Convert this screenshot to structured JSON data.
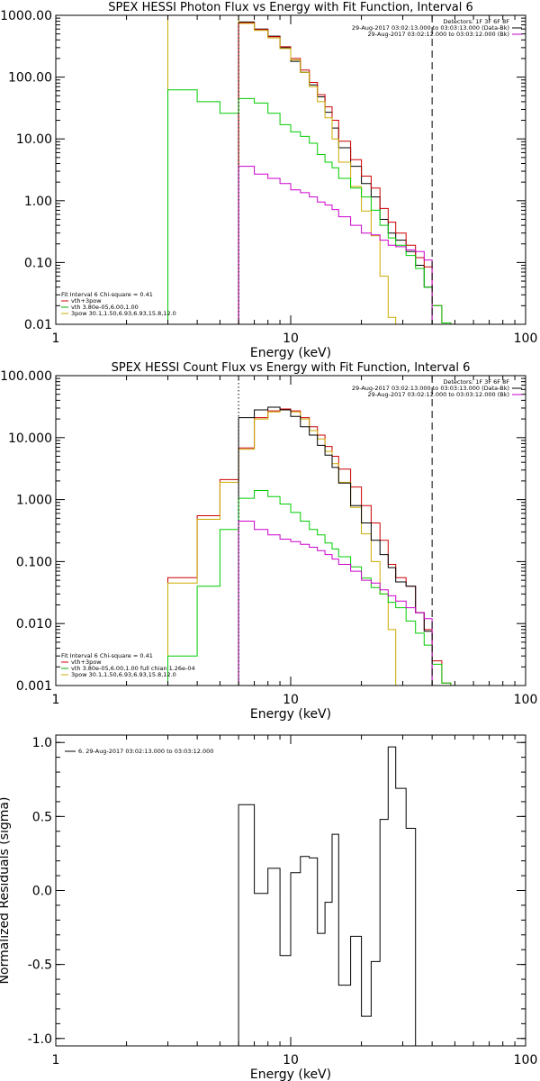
{
  "chart_data": [
    {
      "type": "line",
      "title": "SPEX HESSI Photon Flux vs Energy with Fit Function, Interval 6",
      "xlabel": "Energy (keV)",
      "ylabel": "",
      "xscale": "log",
      "yscale": "log",
      "xlim": [
        1,
        100
      ],
      "ylim": [
        0.01,
        1000
      ],
      "xticks": [
        {
          "v": 1,
          "label": "1"
        },
        {
          "v": 10,
          "label": "10"
        },
        {
          "v": 100,
          "label": "100"
        }
      ],
      "yticks": [
        {
          "v": 1000,
          "label": "1000.00"
        },
        {
          "v": 100,
          "label": "100.00"
        },
        {
          "v": 10,
          "label": "10.00"
        },
        {
          "v": 1,
          "label": "1.00"
        },
        {
          "v": 0.1,
          "label": "0.10"
        },
        {
          "v": 0.01,
          "label": "0.01"
        }
      ],
      "header_lines": [
        {
          "text": "Detectors: 1F 3F 6F 8F",
          "color": "#000000"
        },
        {
          "text": "29-Aug-2017 03:02:13.000 to 03:03:13.000 (Data-Bk)",
          "color": "#000000"
        },
        {
          "text": "29-Aug-2017 03:02:12.000 to 03:03:12.000 (Bk)",
          "color": "#cc00cc"
        }
      ],
      "legend_lines": [
        {
          "text": "Fit Interval 6   Chi-square = 0.41",
          "color": "#000000"
        },
        {
          "text": "vth+3pow",
          "color": "#cc0000"
        },
        {
          "text": "vth 3.80e-05,6.00,1.00",
          "color": "#00aa00"
        },
        {
          "text": "3pow 30.1,1.50,6.93,6.93,15.8,12.0",
          "color": "#ccaa00"
        }
      ],
      "vlines": [
        {
          "x": 6.0,
          "style": "dotted",
          "color": "#000000"
        },
        {
          "x": 40.0,
          "style": "dashed",
          "color": "#000000"
        }
      ],
      "series": [
        {
          "name": "Data-Bk",
          "color": "#000000",
          "x0": 6.0,
          "edges": [
            7,
            8,
            9,
            10,
            11,
            12,
            13,
            14,
            15,
            16,
            18,
            20,
            22,
            24,
            26,
            28,
            31,
            34,
            37,
            40
          ],
          "values": [
            780,
            600,
            460,
            300,
            180,
            120,
            75,
            48,
            27,
            15,
            7.2,
            3.6,
            1.9,
            1.15,
            0.5,
            0.3,
            0.23,
            0.15,
            0.09,
            0.04
          ]
        },
        {
          "name": "vth+3pow",
          "color": "#cc0000",
          "x0": 6.0,
          "edges": [
            7,
            8,
            9,
            10,
            11,
            12,
            13,
            14,
            15,
            16,
            18,
            20,
            22,
            24,
            26,
            28,
            31,
            34,
            37,
            40,
            44,
            48
          ],
          "values": [
            760,
            590,
            450,
            310,
            200,
            130,
            82,
            52,
            33,
            20,
            9.2,
            4.6,
            2.5,
            1.6,
            0.75,
            0.45,
            0.3,
            0.19,
            0.12,
            0.085,
            0.02,
            0.0105
          ]
        },
        {
          "name": "3pow",
          "color": "#ccaa00",
          "x0": 3.0,
          "edges": [
            6,
            7,
            8,
            9,
            10,
            11,
            12,
            13,
            14,
            15,
            16,
            18,
            20,
            22,
            24,
            26,
            28
          ],
          "values": [
            1000,
            740,
            570,
            430,
            290,
            190,
            120,
            70,
            40,
            22,
            10,
            4.2,
            1.7,
            0.68,
            0.27,
            0.06,
            0.013
          ]
        },
        {
          "name": "vth",
          "color": "#00cc00",
          "x0": 3.0,
          "edges": [
            4,
            5,
            6,
            7,
            8,
            9,
            10,
            11,
            12,
            13,
            14,
            15,
            16,
            18,
            20,
            22,
            24,
            26,
            28,
            31,
            34,
            37,
            40,
            44,
            48
          ],
          "values": [
            62,
            40,
            26,
            45,
            38,
            26,
            17,
            13,
            11,
            8.5,
            5.6,
            4.2,
            3.4,
            2.3,
            1.6,
            1.15,
            0.7,
            0.4,
            0.25,
            0.19,
            0.13,
            0.08,
            0.04,
            0.02,
            0.0105
          ]
        },
        {
          "name": "Bk",
          "color": "#cc00cc",
          "x0": 6.0,
          "edges": [
            7,
            8,
            9,
            10,
            11,
            12,
            13,
            14,
            15,
            16,
            18,
            20,
            22,
            24,
            26,
            28,
            31,
            34,
            37,
            40
          ],
          "values": [
            3.6,
            2.7,
            2.3,
            1.9,
            1.5,
            1.35,
            1.15,
            0.95,
            0.85,
            0.72,
            0.55,
            0.4,
            0.3,
            0.28,
            0.23,
            0.19,
            0.18,
            0.16,
            0.15,
            0.11
          ]
        }
      ]
    },
    {
      "type": "line",
      "title": "SPEX HESSI Count Flux vs Energy with Fit Function, Interval 6",
      "xlabel": "Energy (keV)",
      "ylabel": "",
      "xscale": "log",
      "yscale": "log",
      "xlim": [
        1,
        100
      ],
      "ylim": [
        0.001,
        100
      ],
      "xticks": [
        {
          "v": 1,
          "label": "1"
        },
        {
          "v": 10,
          "label": "10"
        },
        {
          "v": 100,
          "label": "100"
        }
      ],
      "yticks": [
        {
          "v": 100,
          "label": "100.000"
        },
        {
          "v": 10,
          "label": "10.000"
        },
        {
          "v": 1,
          "label": "1.000"
        },
        {
          "v": 0.1,
          "label": "0.100"
        },
        {
          "v": 0.01,
          "label": "0.010"
        },
        {
          "v": 0.001,
          "label": "0.001"
        }
      ],
      "header_lines": [
        {
          "text": "Detectors: 1F 3F 6F 8F",
          "color": "#000000"
        },
        {
          "text": "29-Aug-2017 03:02:13.000 to 03:03:13.000 (Data-Bk)",
          "color": "#000000"
        },
        {
          "text": "29-Aug-2017 03:02:12.000 to 03:03:12.000 (Bk)",
          "color": "#cc00cc"
        }
      ],
      "legend_lines": [
        {
          "text": "Fit Interval 6   Chi-square = 0.41",
          "color": "#000000"
        },
        {
          "text": "vth+3pow",
          "color": "#cc0000"
        },
        {
          "text": "vth 3.80e-05,6.00,1.00   full chian 1.26e-04",
          "color": "#00aa00"
        },
        {
          "text": "3pow 30.1,1.50,6.93,6.93,15.8,12.0",
          "color": "#ccaa00"
        }
      ],
      "vlines": [
        {
          "x": 6.0,
          "style": "dotted",
          "color": "#000000"
        },
        {
          "x": 40.0,
          "style": "dashed",
          "color": "#000000"
        }
      ],
      "series": [
        {
          "name": "vth+3pow",
          "color": "#cc0000",
          "x0": 3.0,
          "edges": [
            4,
            5,
            6,
            7,
            8,
            9,
            10,
            11,
            12,
            13,
            14,
            15,
            16,
            18,
            20,
            22,
            24,
            26,
            28,
            31,
            34,
            37,
            40,
            44,
            48
          ],
          "values": [
            0.055,
            0.55,
            2.1,
            6.8,
            21,
            27,
            29,
            27,
            21,
            15,
            11,
            7.2,
            5.0,
            3.1,
            1.6,
            0.8,
            0.42,
            0.22,
            0.09,
            0.055,
            0.04,
            0.015,
            0.008,
            0.0025,
            0.0011
          ]
        },
        {
          "name": "3pow",
          "color": "#ccaa00",
          "x0": 3.0,
          "edges": [
            4,
            5,
            6,
            7,
            8,
            9,
            10,
            11,
            12,
            13,
            14,
            15,
            16,
            18,
            20,
            22,
            24,
            26,
            28
          ],
          "values": [
            0.045,
            0.48,
            1.9,
            6.5,
            20,
            26,
            28,
            26,
            20,
            13,
            9.5,
            6.0,
            3.8,
            1.9,
            0.75,
            0.28,
            0.1,
            0.03,
            0.008
          ]
        },
        {
          "name": "Data-Bk",
          "color": "#000000",
          "x0": 6.0,
          "edges": [
            7,
            8,
            9,
            10,
            11,
            12,
            13,
            14,
            15,
            16,
            18,
            20,
            22,
            24,
            26,
            28,
            31,
            34,
            37,
            40
          ],
          "values": [
            21,
            28,
            31,
            28,
            22,
            15,
            11,
            7.5,
            5.2,
            3.3,
            1.85,
            0.8,
            0.42,
            0.22,
            0.13,
            0.08,
            0.047,
            0.04,
            0.015,
            0.0075
          ]
        },
        {
          "name": "vth",
          "color": "#00cc00",
          "x0": 3.0,
          "edges": [
            4,
            5,
            6,
            7,
            8,
            9,
            10,
            11,
            12,
            13,
            14,
            15,
            16,
            18,
            20,
            22,
            24,
            26,
            28,
            31,
            34,
            37,
            40,
            44,
            48
          ],
          "values": [
            0.003,
            0.04,
            0.33,
            1.05,
            1.4,
            1.12,
            0.85,
            0.62,
            0.45,
            0.33,
            0.27,
            0.2,
            0.16,
            0.12,
            0.082,
            0.054,
            0.038,
            0.03,
            0.022,
            0.018,
            0.011,
            0.007,
            0.0045,
            0.0022,
            0.0011
          ]
        },
        {
          "name": "Bk",
          "color": "#cc00cc",
          "x0": 6.0,
          "edges": [
            7,
            8,
            9,
            10,
            11,
            12,
            13,
            14,
            15,
            16,
            18,
            20,
            22,
            24,
            26,
            28,
            31,
            34,
            37,
            40
          ],
          "values": [
            0.45,
            0.33,
            0.27,
            0.23,
            0.21,
            0.19,
            0.17,
            0.15,
            0.13,
            0.11,
            0.09,
            0.07,
            0.05,
            0.045,
            0.035,
            0.028,
            0.023,
            0.018,
            0.015,
            0.012
          ]
        }
      ]
    },
    {
      "type": "line",
      "title": "",
      "xlabel": "Energy (keV)",
      "ylabel": "Normalized Residuals (sigma)",
      "xscale": "log",
      "yscale": "linear",
      "xlim": [
        1,
        100
      ],
      "ylim": [
        -1.05,
        1.05
      ],
      "xticks": [
        {
          "v": 1,
          "label": "1"
        },
        {
          "v": 10,
          "label": "10"
        },
        {
          "v": 100,
          "label": "100"
        }
      ],
      "yticks": [
        {
          "v": 1,
          "label": "1.0"
        },
        {
          "v": 0.5,
          "label": "0.5"
        },
        {
          "v": 0,
          "label": "0.0"
        },
        {
          "v": -0.5,
          "label": "-0.5"
        },
        {
          "v": -1,
          "label": "-1.0"
        }
      ],
      "header_lines": [],
      "legend_lines": [
        {
          "text": "6. 29-Aug-2017 03:02:13.000 to 03:03:12.000",
          "color": "#000000"
        }
      ],
      "vlines": [],
      "series": [
        {
          "name": "6. 29-Aug-2017 03:02:13.000 to 03:03:12.000",
          "color": "#000000",
          "x0": 6.0,
          "edges": [
            7,
            8,
            9,
            10,
            11,
            12,
            13,
            14,
            15,
            16,
            18,
            20,
            22,
            24,
            26,
            28,
            31,
            34,
            37,
            40
          ],
          "values": [
            0.58,
            -0.02,
            0.15,
            -0.44,
            0.12,
            0.23,
            0.22,
            -0.29,
            -0.08,
            0.38,
            -0.64,
            -0.31,
            -0.85,
            -0.48,
            0.48,
            0.97,
            0.69,
            0.42,
            -1.05,
            -1.05
          ]
        }
      ]
    }
  ]
}
